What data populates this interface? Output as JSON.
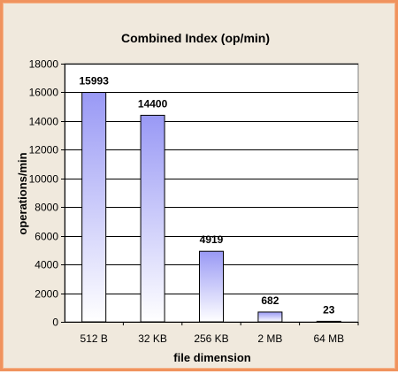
{
  "chart_data": {
    "type": "bar",
    "title": "Combined Index (op/min)",
    "xlabel": "file dimension",
    "ylabel": "operations/min",
    "categories": [
      "512 B",
      "32 KB",
      "256 KB",
      "2 MB",
      "64 MB"
    ],
    "values": [
      15993,
      14400,
      4919,
      682,
      23
    ],
    "data_labels": [
      "15993",
      "14400",
      "4919",
      "682",
      "23"
    ],
    "ylim": [
      0,
      18000
    ],
    "yticks": [
      0,
      2000,
      4000,
      6000,
      8000,
      10000,
      12000,
      14000,
      16000,
      18000
    ],
    "grid": true,
    "legend": "none",
    "colors": {
      "bar_top": "#9999f5",
      "bar_bottom": "#ffffff",
      "bar_border": "#000000",
      "gridline": "#000000",
      "frame": "#f0935e",
      "background": "#f0e9dd",
      "plot_area": "#ffffff"
    }
  }
}
